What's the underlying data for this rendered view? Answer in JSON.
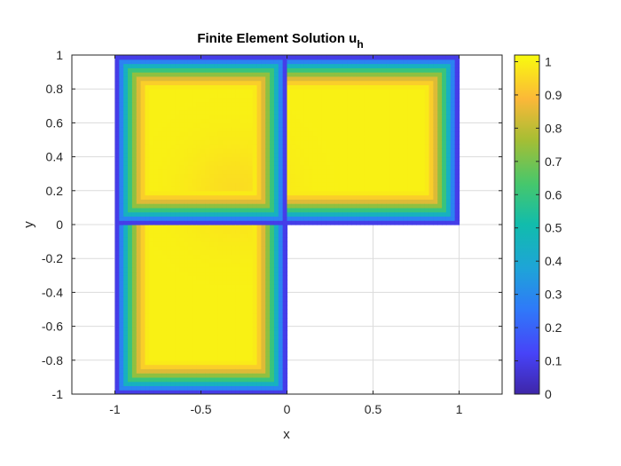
{
  "chart_data": {
    "type": "heatmap",
    "title": "Finite Element Solution u",
    "title_subscript": "h",
    "xlabel": "x",
    "ylabel": "y",
    "xlim": [
      -1.25,
      1.25
    ],
    "ylim": [
      -1,
      1
    ],
    "xticks": [
      -1,
      -0.5,
      0,
      0.5,
      1
    ],
    "xtick_labels": [
      "-1",
      "-0.5",
      "0",
      "0.5",
      "1"
    ],
    "yticks": [
      1,
      0.8,
      0.6,
      0.4,
      0.2,
      0,
      -0.2,
      -0.4,
      -0.6,
      -0.8,
      -1
    ],
    "ytick_labels": [
      "1",
      "0.8",
      "0.6",
      "0.4",
      "0.2",
      "0",
      "-0.2",
      "-0.4",
      "-0.6",
      "-0.8",
      "-1"
    ],
    "grid": true,
    "domain": "L-shaped region: [-1,1]x[0,1] union [-1,0]x[-1,0]",
    "colormap": "parula",
    "colorbar": {
      "location": "right",
      "limits": [
        0,
        1.02
      ],
      "ticks": [
        1,
        0.9,
        0.8,
        0.7,
        0.6,
        0.5,
        0.4,
        0.3,
        0.2,
        0.1,
        0
      ],
      "tick_labels": [
        "1",
        "0.9",
        "0.8",
        "0.7",
        "0.6",
        "0.5",
        "0.4",
        "0.3",
        "0.2",
        "0.1",
        "0"
      ]
    },
    "field": {
      "boundary_value": 0,
      "interior_value": 1,
      "transition_width": 0.2,
      "interior_minimum": 0.96
    }
  }
}
